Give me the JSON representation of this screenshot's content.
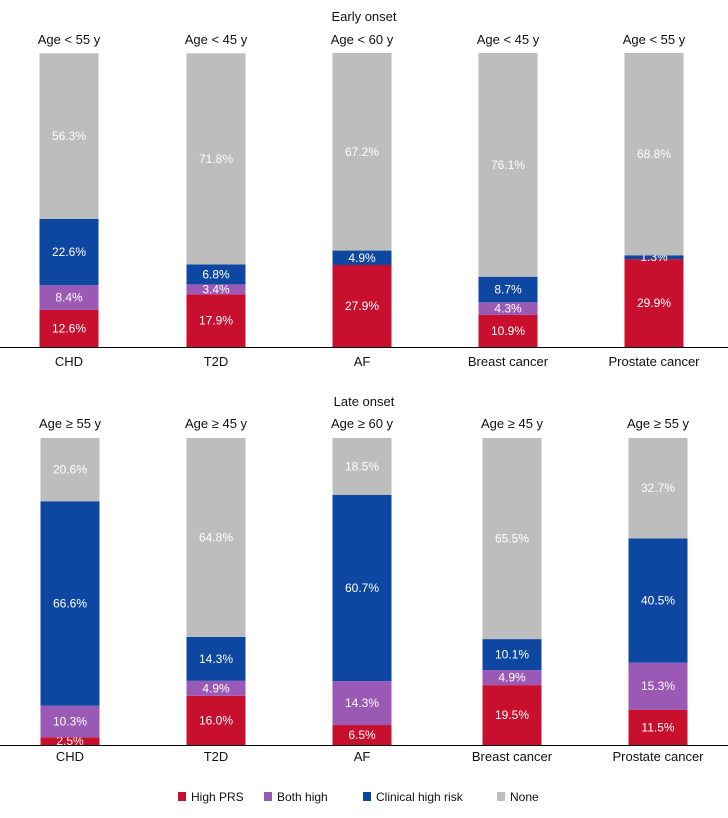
{
  "chart_data": [
    {
      "type": "bar",
      "stacked": true,
      "title": "Early onset",
      "ylim": [
        0,
        100
      ],
      "unit": "%",
      "categories": [
        "CHD",
        "T2D",
        "AF",
        "Breast cancer",
        "Prostate cancer"
      ],
      "column_headers": [
        "Age < 55 y",
        "Age < 45 y",
        "Age < 60 y",
        "Age < 45 y",
        "Age < 55 y"
      ],
      "series": [
        {
          "name": "High PRS",
          "values": [
            12.6,
            17.9,
            27.9,
            10.9,
            29.9
          ]
        },
        {
          "name": "Both high",
          "values": [
            8.4,
            3.4,
            0,
            4.3,
            0
          ]
        },
        {
          "name": "Clinical high risk",
          "values": [
            22.6,
            6.8,
            4.9,
            8.7,
            1.3
          ]
        },
        {
          "name": "None",
          "values": [
            56.3,
            71.8,
            67.2,
            76.1,
            68.8
          ]
        }
      ]
    },
    {
      "type": "bar",
      "stacked": true,
      "title": "Late onset",
      "ylim": [
        0,
        100
      ],
      "unit": "%",
      "categories": [
        "CHD",
        "T2D",
        "AF",
        "Breast cancer",
        "Prostate cancer"
      ],
      "column_headers": [
        "Age ≥ 55 y",
        "Age ≥ 45 y",
        "Age ≥ 60 y",
        "Age ≥ 45 y",
        "Age ≥ 55 y"
      ],
      "series": [
        {
          "name": "High PRS",
          "values": [
            2.5,
            16.0,
            6.5,
            19.5,
            11.5
          ]
        },
        {
          "name": "Both high",
          "values": [
            10.3,
            4.9,
            14.3,
            4.9,
            15.3
          ]
        },
        {
          "name": "Clinical high risk",
          "values": [
            66.6,
            14.3,
            60.7,
            10.1,
            40.5
          ]
        },
        {
          "name": "None",
          "values": [
            20.6,
            64.8,
            18.5,
            65.5,
            32.7
          ]
        }
      ]
    }
  ],
  "legend": {
    "placement": "bottom",
    "items": [
      {
        "name": "High PRS",
        "color": "#C8102E"
      },
      {
        "name": "Both high",
        "color": "#9B59B6"
      },
      {
        "name": "Clinical high risk",
        "color": "#0D47A1"
      },
      {
        "name": "None",
        "color": "#BDBDBD"
      }
    ]
  }
}
